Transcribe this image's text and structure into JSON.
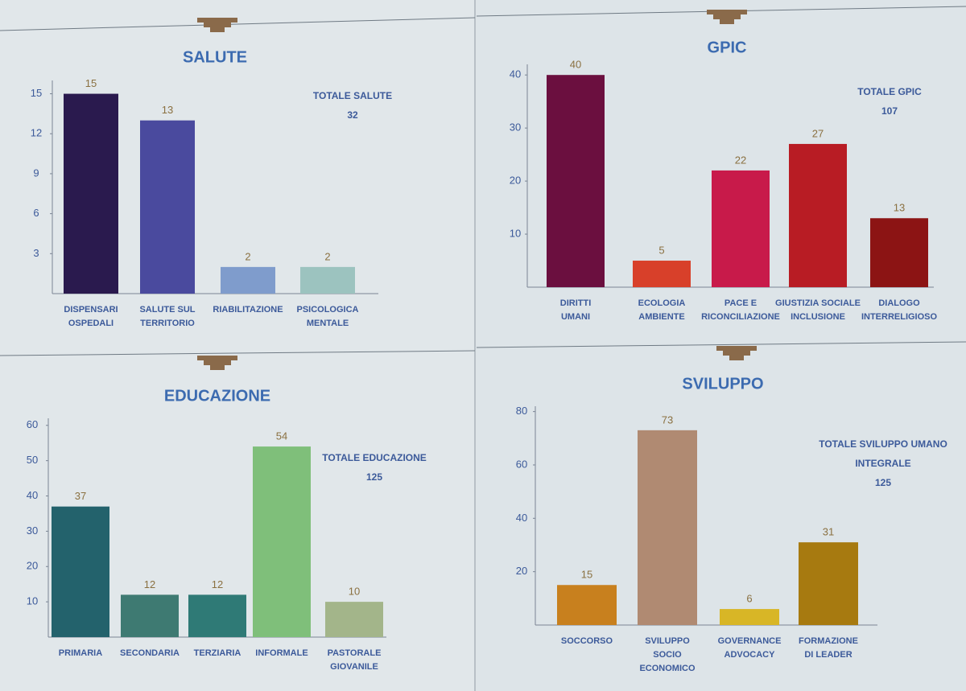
{
  "chart_data": [
    {
      "type": "bar",
      "title": "SALUTE",
      "annotation": [
        "TOTALE SALUTE",
        "32"
      ],
      "categories": [
        [
          "DISPENSARI",
          "OSPEDALI"
        ],
        [
          "SALUTE SUL",
          "TERRITORIO"
        ],
        [
          "RIABILITAZIONE"
        ],
        [
          "PSICOLOGICA",
          "MENTALE"
        ]
      ],
      "values": [
        15,
        13,
        2,
        2
      ],
      "colors": [
        "#2a1a4e",
        "#4a4a9e",
        "#7f9ccc",
        "#9cc3bf"
      ],
      "ylim": [
        0,
        16
      ],
      "yticks": [
        3,
        6,
        9,
        12,
        15
      ]
    },
    {
      "type": "bar",
      "title": "GPIC",
      "annotation": [
        "TOTALE GPIC",
        "107"
      ],
      "categories": [
        [
          "DIRITTI",
          "UMANI"
        ],
        [
          "ECOLOGIA",
          "AMBIENTE"
        ],
        [
          "PACE E",
          "RICONCILIAZIONE"
        ],
        [
          "GIUSTIZIA SOCIALE",
          "INCLUSIONE"
        ],
        [
          "DIALOGO",
          "INTERRELIGIOSO"
        ]
      ],
      "values": [
        40,
        5,
        22,
        27,
        13
      ],
      "colors": [
        "#6b0f3f",
        "#d8402a",
        "#c81a4a",
        "#b81c24",
        "#8c1414"
      ],
      "ylim": [
        0,
        42
      ],
      "yticks": [
        10,
        20,
        30,
        40
      ]
    },
    {
      "type": "bar",
      "title": "EDUCAZIONE",
      "annotation": [
        "TOTALE EDUCAZIONE",
        "125"
      ],
      "categories": [
        [
          "PRIMARIA"
        ],
        [
          "SECONDARIA"
        ],
        [
          "TERZIARIA"
        ],
        [
          "INFORMALE"
        ],
        [
          "PASTORALE",
          "GIOVANILE"
        ]
      ],
      "values": [
        37,
        12,
        12,
        54,
        10
      ],
      "colors": [
        "#23626c",
        "#3e7a72",
        "#2f7a76",
        "#7fbf7a",
        "#a3b58a"
      ],
      "ylim": [
        0,
        62
      ],
      "yticks": [
        10,
        20,
        30,
        40,
        50,
        60
      ]
    },
    {
      "type": "bar",
      "title": "SVILUPPO",
      "annotation": [
        "TOTALE SVILUPPO UMANO",
        "INTEGRALE",
        "125"
      ],
      "categories": [
        [
          "SOCCORSO"
        ],
        [
          "SVILUPPO",
          "SOCIO",
          "ECONOMICO"
        ],
        [
          "GOVERNANCE",
          "ADVOCACY"
        ],
        [
          "FORMAZIONE",
          "DI LEADER"
        ]
      ],
      "values": [
        15,
        73,
        6,
        31
      ],
      "colors": [
        "#c8801e",
        "#b08a72",
        "#d8b626",
        "#a77a10"
      ],
      "ylim": [
        0,
        82
      ],
      "yticks": [
        20,
        40,
        60,
        80
      ]
    }
  ]
}
